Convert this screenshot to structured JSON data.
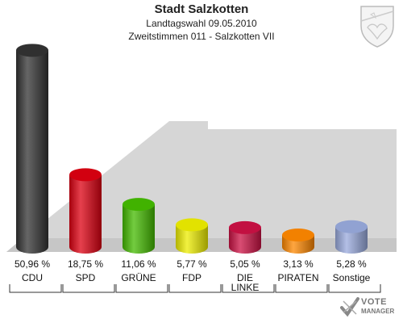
{
  "header": {
    "title": "Stadt Salzkotten",
    "subtitle1": "Landtagswahl 09.05.2010",
    "subtitle2": "Zweitstimmen 011 - Salzkotten VII"
  },
  "chart_data": {
    "type": "bar",
    "title": "Stadt Salzkotten",
    "subtitle": "Landtagswahl 09.05.2010 / Zweitstimmen 011 - Salzkotten VII",
    "categories": [
      "CDU",
      "SPD",
      "GRÜNE",
      "FDP",
      "DIE LINKE",
      "PIRATEN",
      "Sonstige"
    ],
    "category_lines": [
      [
        "CDU"
      ],
      [
        "SPD"
      ],
      [
        "GRÜNE"
      ],
      [
        "FDP"
      ],
      [
        "DIE",
        "LINKE"
      ],
      [
        "PIRATEN"
      ],
      [
        "Sonstige"
      ]
    ],
    "values": [
      50.96,
      18.75,
      11.06,
      5.77,
      5.05,
      3.13,
      5.28
    ],
    "value_labels": [
      "50,96 %",
      "18,75 %",
      "11,06 %",
      "5,77 %",
      "5,05 %",
      "3,13 %",
      "5,28 %"
    ],
    "colors": [
      "#333333",
      "#dd0011",
      "#44bb00",
      "#eeee00",
      "#cc1144",
      "#ff8800",
      "#99aadd"
    ],
    "ylim": [
      0,
      55
    ],
    "grid": false,
    "legend": "none",
    "xlabel": "",
    "ylabel": ""
  },
  "branding": {
    "logo_line1": "VOTE",
    "logo_line2": "MANAGER"
  }
}
